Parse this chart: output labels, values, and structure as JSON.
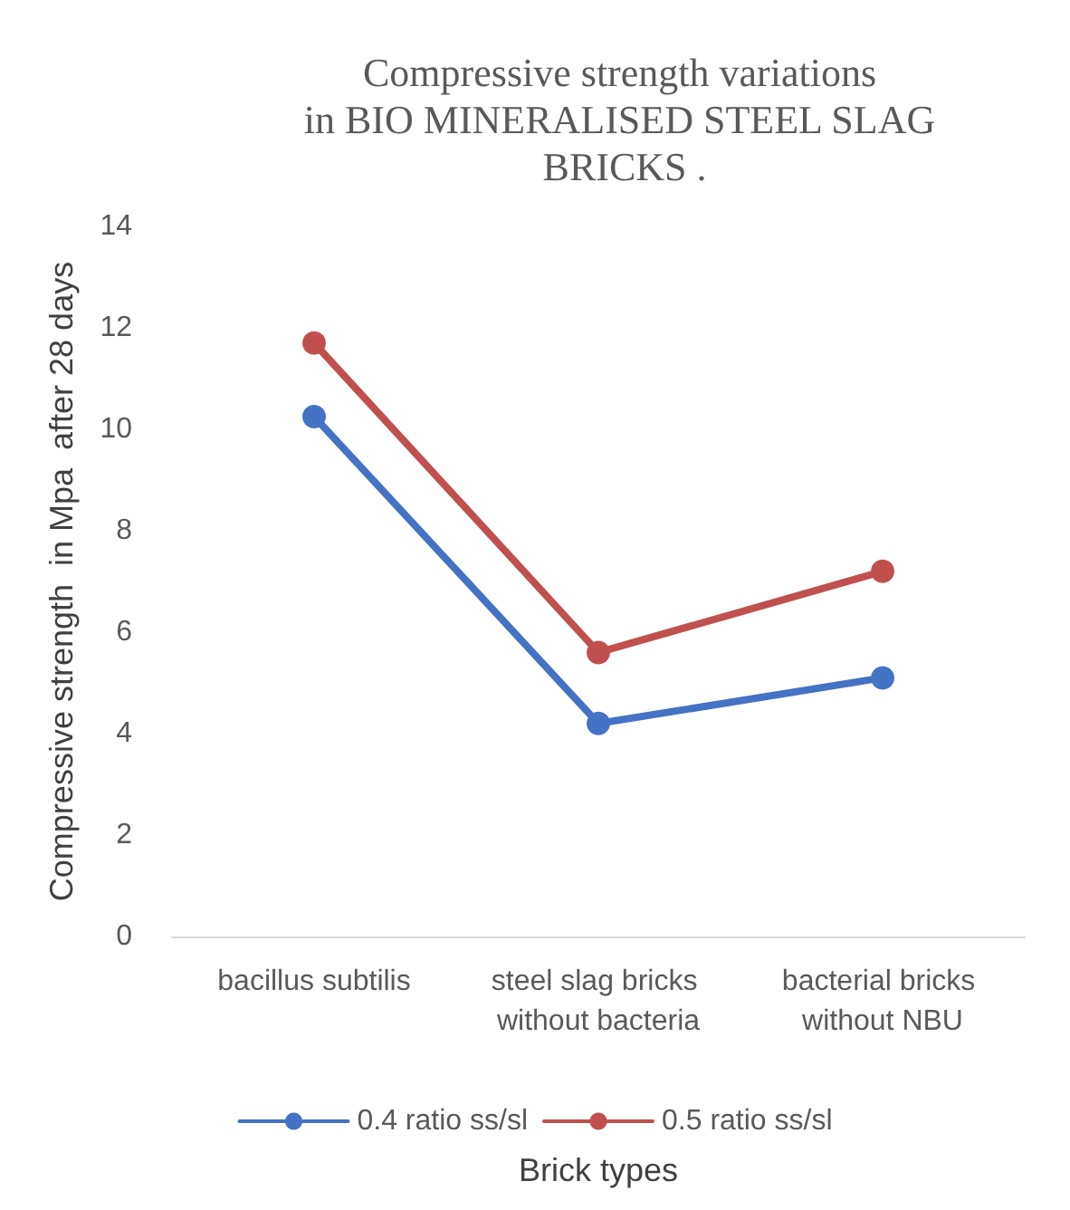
{
  "chart_data": {
    "type": "line",
    "title": "Compressive strength variations in BIO MINERALISED STEEL SLAG BRICKS .",
    "xlabel": "Brick types",
    "ylabel": "Compressive strength  in Mpa  after 28 days",
    "categories": [
      "bacillus subtilis",
      "steel slag bricks without bacteria",
      "bacterial bricks without NBU"
    ],
    "series": [
      {
        "name": "0.4 ratio ss/sl",
        "color": "#4472c4",
        "values": [
          10.25,
          4.2,
          5.1
        ]
      },
      {
        "name": "0.5 ratio ss/sl",
        "color": "#c0504d",
        "values": [
          11.7,
          5.6,
          7.2
        ]
      }
    ],
    "ylim": [
      0,
      14
    ],
    "yticks": [
      0,
      2,
      4,
      6,
      8,
      10,
      12,
      14
    ],
    "grid": false,
    "legend": "bottom",
    "marker": "circle",
    "line_style": "solid"
  }
}
